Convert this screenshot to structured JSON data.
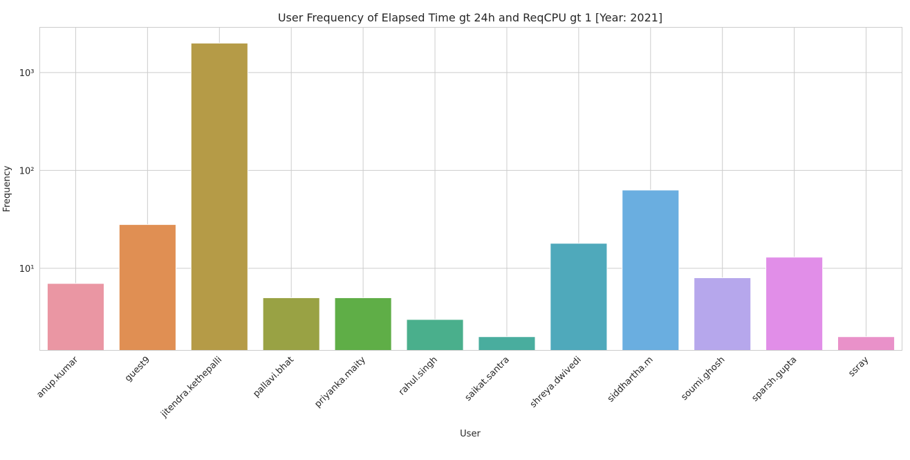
{
  "chart_data": {
    "type": "bar",
    "title": "User Frequency of Elapsed Time gt 24h and ReqCPU gt 1 [Year: 2021]",
    "xlabel": "User",
    "ylabel": "Frequency",
    "yscale": "log",
    "grid": true,
    "categories": [
      "anup.kumar",
      "guest9",
      "jitendra.kethepalli",
      "pallavi.bhat",
      "priyanka.maity",
      "rahul.singh",
      "saikat.santra",
      "shreya.dwivedi",
      "siddhartha.m",
      "soumi.ghosh",
      "sparsh.gupta",
      "ssray"
    ],
    "values": [
      7,
      28,
      2000,
      5,
      5,
      3,
      2,
      18,
      63,
      8,
      13,
      2
    ],
    "colors": [
      "#ea96a3",
      "#e08f53",
      "#b59b47",
      "#99a244",
      "#5fae47",
      "#4aaf8c",
      "#49ad9e",
      "#4fa9bb",
      "#6aaee0",
      "#b6a7ec",
      "#e18ee8",
      "#e991c9"
    ],
    "ytick_labels": [
      "10¹",
      "10²",
      "10³"
    ],
    "ylim": [
      1.45,
      2900
    ]
  }
}
